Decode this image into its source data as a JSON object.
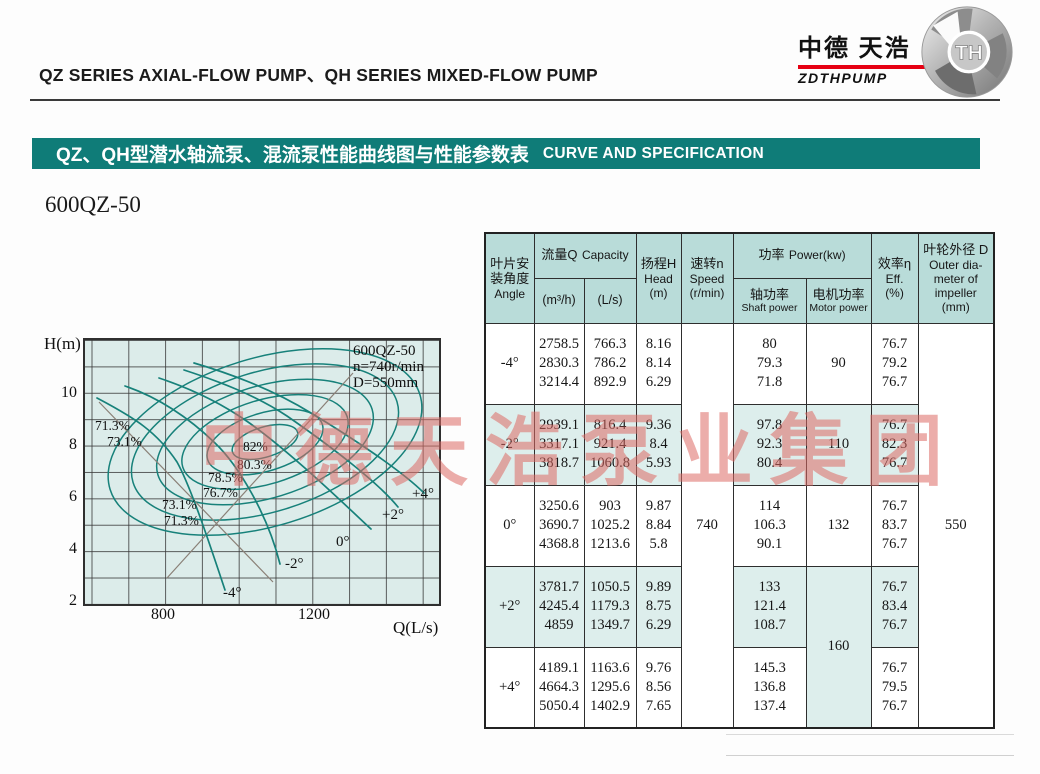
{
  "page": {
    "title": "QZ SERIES AXIAL-FLOW PUMP、QH SERIES MIXED-FLOW PUMP",
    "logo": {
      "cn": "中德 天浩",
      "en": "ZDTHPUMP",
      "emblem_text": "TH"
    },
    "banner": {
      "cn": "QZ、QH型潜水轴流泵、混流泵性能曲线图与性能参数表",
      "en": "CURVE AND SPECIFICATION"
    },
    "model": "600QZ-50",
    "watermark": "中德天浩泵业集团",
    "colors": {
      "banner_teal": "#0f7c78",
      "table_header_teal": "#b9dcd9",
      "row_stripe_teal": "#ddeeec",
      "chart_bg": "#dcecea",
      "curve_teal": "#17817a",
      "logo_red": "#e60012",
      "watermark_red": "#dc6964"
    }
  },
  "chart": {
    "ylabel": "H(m)",
    "xlabel": "Q(L/s)",
    "yticks": [
      "10",
      "8",
      "6",
      "4",
      "2"
    ],
    "xticks": [
      "800",
      "1200"
    ],
    "annotation": [
      "600QZ-50",
      "n=740r/min",
      "D=550mm"
    ],
    "eff_left": [
      "71.3%",
      "73.1%"
    ],
    "eff_diag": [
      "82%",
      "80.3%",
      "78.5%",
      "76.7%",
      "73.1%",
      "71.3%"
    ],
    "angles": [
      "+4°",
      "+2°",
      "0°",
      "-2°",
      "-4°"
    ]
  },
  "chart_data": {
    "type": "line",
    "title": "600QZ-50 performance curves (H-Q with efficiency contours)",
    "xlabel": "Q(L/s)",
    "ylabel": "H(m)",
    "xlim": [
      600,
      1500
    ],
    "ylim": [
      2,
      12
    ],
    "xticks": [
      800,
      1200
    ],
    "yticks": [
      2,
      4,
      6,
      8,
      10
    ],
    "annotation": [
      "600QZ-50",
      "n=740r/min",
      "D=550mm"
    ],
    "series": [
      {
        "name": "-4°",
        "points": [
          [
            766.3,
            8.16
          ],
          [
            786.2,
            8.14
          ],
          [
            892.9,
            6.29
          ]
        ]
      },
      {
        "name": "-2°",
        "points": [
          [
            816.4,
            9.36
          ],
          [
            921.4,
            8.4
          ],
          [
            1060.8,
            5.93
          ]
        ]
      },
      {
        "name": "0°",
        "points": [
          [
            903,
            9.87
          ],
          [
            1025.2,
            8.84
          ],
          [
            1213.6,
            5.8
          ]
        ]
      },
      {
        "name": "+2°",
        "points": [
          [
            1050.5,
            9.89
          ],
          [
            1179.3,
            8.75
          ],
          [
            1349.7,
            6.29
          ]
        ]
      },
      {
        "name": "+4°",
        "points": [
          [
            1163.6,
            9.76
          ],
          [
            1295.6,
            8.56
          ],
          [
            1402.9,
            7.65
          ]
        ]
      }
    ],
    "efficiency_contours_percent": [
      82,
      80.3,
      78.5,
      76.7,
      73.1,
      71.3
    ],
    "legend_position": "none",
    "grid": true
  },
  "table": {
    "headers": {
      "angle": {
        "cn": [
          "叶片安",
          "装角度"
        ],
        "en": "Angle"
      },
      "capacity": {
        "cn": "流量Q",
        "en": "Capacity"
      },
      "m3h": "(m³/h)",
      "ls": "(L/s)",
      "head": {
        "cn": "扬程H",
        "en": "Head",
        "unit": "(m)"
      },
      "speed": {
        "cn": "速转n",
        "en": "Speed",
        "unit": "(r/min)"
      },
      "power": {
        "cn": "功率",
        "en": "Power(kw)"
      },
      "shaft": {
        "cn": "轴功率",
        "en": "Shaft power"
      },
      "motor": {
        "cn": "电机功率",
        "en": "Motor power"
      },
      "eff": {
        "cn": "效率η",
        "en": "Eff.",
        "unit": "(%)"
      },
      "outer": {
        "cn": "叶轮外径 D",
        "en": [
          "Outer dia-",
          "meter of",
          "impeller",
          "(mm)"
        ]
      }
    },
    "speed_value": "740",
    "outer_diameter_value": "550",
    "rows": [
      {
        "angle": "-4°",
        "m3h": [
          "2758.5",
          "2830.3",
          "3214.4"
        ],
        "ls": [
          "766.3",
          "786.2",
          "892.9"
        ],
        "head": [
          "8.16",
          "8.14",
          "6.29"
        ],
        "shaft": [
          "80",
          "79.3",
          "71.8"
        ],
        "motor": "90",
        "eff": [
          "76.7",
          "79.2",
          "76.7"
        ],
        "shaded": false
      },
      {
        "angle": "-2°",
        "m3h": [
          "2939.1",
          "3317.1",
          "3818.7"
        ],
        "ls": [
          "816.4",
          "921.4",
          "1060.8"
        ],
        "head": [
          "9.36",
          "8.4",
          "5.93"
        ],
        "shaft": [
          "97.8",
          "92.3",
          "80.4"
        ],
        "motor": "110",
        "eff": [
          "76.7",
          "82.3",
          "76.7"
        ],
        "shaded": true
      },
      {
        "angle": "0°",
        "m3h": [
          "3250.6",
          "3690.7",
          "4368.8"
        ],
        "ls": [
          "903",
          "1025.2",
          "1213.6"
        ],
        "head": [
          "9.87",
          "8.84",
          "5.8"
        ],
        "shaft": [
          "114",
          "106.3",
          "90.1"
        ],
        "motor": "132",
        "eff": [
          "76.7",
          "83.7",
          "76.7"
        ],
        "shaded": false
      },
      {
        "angle": "+2°",
        "m3h": [
          "3781.7",
          "4245.4",
          "4859"
        ],
        "ls": [
          "1050.5",
          "1179.3",
          "1349.7"
        ],
        "head": [
          "9.89",
          "8.75",
          "6.29"
        ],
        "shaft": [
          "133",
          "121.4",
          "108.7"
        ],
        "motor": "160",
        "eff": [
          "76.7",
          "83.4",
          "76.7"
        ],
        "shaded": true
      },
      {
        "angle": "+4°",
        "m3h": [
          "4189.1",
          "4664.3",
          "5050.4"
        ],
        "ls": [
          "1163.6",
          "1295.6",
          "1402.9"
        ],
        "head": [
          "9.76",
          "8.56",
          "7.65"
        ],
        "shaft": [
          "145.3",
          "136.8",
          "137.4"
        ],
        "motor": "",
        "eff": [
          "76.7",
          "79.5",
          "76.7"
        ],
        "shaded": false
      }
    ]
  }
}
